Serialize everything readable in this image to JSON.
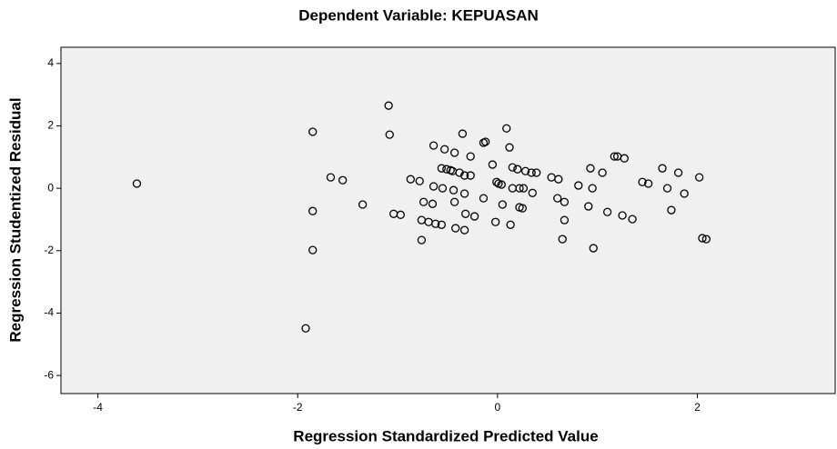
{
  "chart_data": {
    "type": "scatter",
    "title": "Dependent Variable: KEPUASAN",
    "xlabel": "Regression Standardized Predicted Value",
    "ylabel": "Regression Studentized Residual",
    "xlim": [
      -4.37,
      3.38
    ],
    "ylim": [
      -6.58,
      4.52
    ],
    "xticks": [
      -4,
      -2,
      0,
      2
    ],
    "yticks": [
      -6,
      -4,
      -2,
      0,
      2,
      4
    ],
    "color": "#000000",
    "x": [
      -3.61,
      -1.85,
      -1.85,
      -1.85,
      -1.92,
      -1.67,
      -1.55,
      -1.35,
      -1.09,
      -1.08,
      -1.04,
      -0.97,
      -0.87,
      -0.78,
      -0.76,
      -0.76,
      -0.74,
      -0.65,
      -0.69,
      -0.62,
      -0.56,
      -0.64,
      -0.64,
      -0.56,
      -0.55,
      -0.53,
      -0.51,
      -0.47,
      -0.45,
      -0.44,
      -0.43,
      -0.43,
      -0.42,
      -0.38,
      -0.35,
      -0.33,
      -0.33,
      -0.32,
      -0.33,
      -0.27,
      -0.27,
      -0.23,
      -0.14,
      -0.12,
      -0.14,
      -0.05,
      -0.02,
      -0.01,
      0.01,
      0.04,
      0.05,
      0.09,
      0.12,
      0.13,
      0.15,
      0.15,
      0.2,
      0.22,
      0.22,
      0.25,
      0.26,
      0.28,
      0.34,
      0.35,
      0.39,
      0.54,
      0.61,
      0.6,
      0.65,
      0.67,
      0.67,
      0.81,
      0.91,
      0.93,
      0.95,
      0.96,
      1.05,
      1.1,
      1.17,
      1.2,
      1.25,
      1.27,
      1.35,
      1.45,
      1.51,
      1.65,
      1.7,
      1.74,
      1.81,
      1.87,
      2.02,
      2.05,
      2.09
    ],
    "y": [
      0.15,
      1.81,
      -0.73,
      -1.98,
      -4.49,
      0.35,
      0.26,
      -0.52,
      2.65,
      1.72,
      -0.82,
      -0.85,
      0.29,
      0.23,
      -1.02,
      -1.66,
      -0.44,
      -0.5,
      -1.08,
      -1.14,
      -1.17,
      1.37,
      0.06,
      0.64,
      0.0,
      1.25,
      0.61,
      0.58,
      0.55,
      -0.06,
      1.14,
      -0.44,
      -1.28,
      0.5,
      1.75,
      0.41,
      -0.17,
      -0.82,
      -1.34,
      0.41,
      1.02,
      -0.9,
      1.46,
      1.49,
      -0.32,
      0.76,
      -1.08,
      0.2,
      0.15,
      0.12,
      -0.52,
      1.92,
      1.31,
      -1.17,
      0.0,
      0.67,
      0.61,
      0.0,
      -0.61,
      -0.64,
      0.0,
      0.55,
      0.5,
      -0.15,
      0.5,
      0.35,
      0.29,
      -0.32,
      -1.63,
      -0.44,
      -1.02,
      0.09,
      -0.58,
      0.64,
      0.0,
      -1.92,
      0.5,
      -0.76,
      1.02,
      1.02,
      -0.87,
      0.96,
      -0.99,
      0.2,
      0.15,
      0.64,
      0.0,
      -0.7,
      0.5,
      -0.17,
      0.35,
      -1.6,
      -1.63
    ]
  }
}
